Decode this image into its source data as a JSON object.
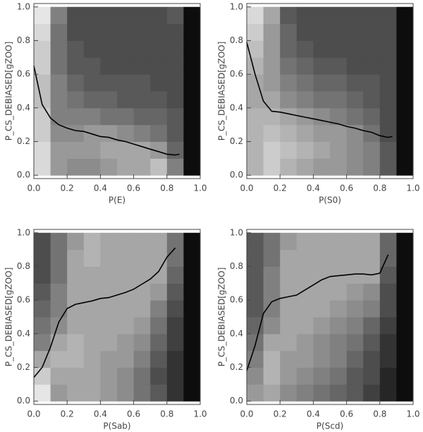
{
  "chart_data": [
    {
      "type": "line",
      "xlabel": "P(E)",
      "ylabel": "P_CS_DEBIASED[gZOO]",
      "color": "#000000",
      "colormap": "gray",
      "x": [
        0,
        0.05,
        0.1,
        0.15,
        0.2,
        0.25,
        0.3,
        0.35,
        0.4,
        0.45,
        0.5,
        0.55,
        0.6,
        0.65,
        0.7,
        0.75,
        0.8,
        0.85,
        0.875
      ],
      "values": [
        0.65,
        0.42,
        0.34,
        0.3,
        0.28,
        0.265,
        0.26,
        0.245,
        0.23,
        0.225,
        0.21,
        0.2,
        0.185,
        0.17,
        0.155,
        0.14,
        0.125,
        0.12,
        0.125
      ],
      "xlim": [
        0,
        1
      ],
      "ylim": [
        -0.02,
        1.02
      ],
      "xticks": [
        {
          "value": 0,
          "label": "0.0"
        },
        {
          "value": 0.2,
          "label": "0.2"
        },
        {
          "value": 0.4,
          "label": "0.4"
        },
        {
          "value": 0.6,
          "label": "0.6"
        },
        {
          "value": 0.8,
          "label": "0.8"
        },
        {
          "value": 1,
          "label": "1.0"
        }
      ],
      "yticks": [
        {
          "value": 0,
          "label": "0.0"
        },
        {
          "value": 0.2,
          "label": "0.2"
        },
        {
          "value": 0.4,
          "label": "0.4"
        },
        {
          "value": 0.6,
          "label": "0.6"
        },
        {
          "value": 0.8,
          "label": "0.8"
        },
        {
          "value": 1,
          "label": "1.0"
        }
      ],
      "heatmap": {
        "xbins": [
          0,
          0.1,
          0.2,
          0.3,
          0.4,
          0.5,
          0.6,
          0.7,
          0.8,
          0.9,
          1
        ],
        "ybins": [
          0,
          0.1,
          0.2,
          0.3,
          0.4,
          0.5,
          0.6,
          0.7,
          0.8,
          0.9,
          1
        ],
        "z": [
          [
            0.85,
            0.6,
            0.55,
            0.55,
            0.6,
            0.65,
            0.65,
            0.75,
            0.5,
            0.05
          ],
          [
            0.85,
            0.6,
            0.6,
            0.6,
            0.65,
            0.65,
            0.65,
            0.6,
            0.4,
            0.05
          ],
          [
            0.8,
            0.55,
            0.55,
            0.6,
            0.6,
            0.55,
            0.5,
            0.45,
            0.35,
            0.05
          ],
          [
            0.8,
            0.5,
            0.5,
            0.5,
            0.45,
            0.45,
            0.4,
            0.4,
            0.35,
            0.05
          ],
          [
            0.75,
            0.5,
            0.45,
            0.4,
            0.4,
            0.35,
            0.35,
            0.35,
            0.3,
            0.05
          ],
          [
            0.75,
            0.5,
            0.4,
            0.35,
            0.35,
            0.35,
            0.35,
            0.3,
            0.3,
            0.05
          ],
          [
            0.8,
            0.45,
            0.35,
            0.35,
            0.3,
            0.3,
            0.3,
            0.3,
            0.3,
            0.05
          ],
          [
            0.8,
            0.45,
            0.35,
            0.3,
            0.3,
            0.3,
            0.3,
            0.3,
            0.3,
            0.05
          ],
          [
            0.85,
            0.45,
            0.3,
            0.3,
            0.3,
            0.3,
            0.3,
            0.3,
            0.3,
            0.05
          ],
          [
            0.9,
            0.5,
            0.3,
            0.3,
            0.3,
            0.3,
            0.3,
            0.3,
            0.35,
            0.05
          ]
        ]
      }
    },
    {
      "type": "line",
      "xlabel": "P(S0)",
      "ylabel": "P_CS_DEBIASED[gZOO]",
      "color": "#000000",
      "colormap": "gray",
      "x": [
        0,
        0.05,
        0.1,
        0.15,
        0.2,
        0.25,
        0.3,
        0.35,
        0.4,
        0.45,
        0.5,
        0.55,
        0.6,
        0.65,
        0.7,
        0.75,
        0.8,
        0.85,
        0.875
      ],
      "values": [
        0.79,
        0.6,
        0.44,
        0.38,
        0.375,
        0.365,
        0.355,
        0.345,
        0.335,
        0.325,
        0.315,
        0.305,
        0.29,
        0.28,
        0.265,
        0.255,
        0.235,
        0.225,
        0.23
      ],
      "xlim": [
        0,
        1
      ],
      "ylim": [
        -0.02,
        1.02
      ],
      "xticks": [
        {
          "value": 0,
          "label": "0.0"
        },
        {
          "value": 0.2,
          "label": "0.2"
        },
        {
          "value": 0.4,
          "label": "0.4"
        },
        {
          "value": 0.6,
          "label": "0.6"
        },
        {
          "value": 0.8,
          "label": "0.8"
        },
        {
          "value": 1,
          "label": "1.0"
        }
      ],
      "yticks": [
        {
          "value": 0,
          "label": "0.0"
        },
        {
          "value": 0.2,
          "label": "0.2"
        },
        {
          "value": 0.4,
          "label": "0.4"
        },
        {
          "value": 0.6,
          "label": "0.6"
        },
        {
          "value": 0.8,
          "label": "0.8"
        },
        {
          "value": 1,
          "label": "1.0"
        }
      ],
      "heatmap": {
        "xbins": [
          0,
          0.1,
          0.2,
          0.3,
          0.4,
          0.5,
          0.6,
          0.7,
          0.8,
          0.9,
          1
        ],
        "ybins": [
          0,
          0.1,
          0.2,
          0.3,
          0.4,
          0.5,
          0.6,
          0.7,
          0.8,
          0.9,
          1
        ],
        "z": [
          [
            0.7,
            0.8,
            0.7,
            0.65,
            0.6,
            0.6,
            0.55,
            0.5,
            0.35,
            0.05
          ],
          [
            0.7,
            0.8,
            0.75,
            0.7,
            0.65,
            0.6,
            0.55,
            0.5,
            0.35,
            0.05
          ],
          [
            0.7,
            0.75,
            0.7,
            0.65,
            0.6,
            0.6,
            0.55,
            0.45,
            0.3,
            0.05
          ],
          [
            0.7,
            0.7,
            0.65,
            0.6,
            0.55,
            0.5,
            0.45,
            0.4,
            0.3,
            0.05
          ],
          [
            0.65,
            0.65,
            0.55,
            0.5,
            0.45,
            0.45,
            0.4,
            0.35,
            0.3,
            0.05
          ],
          [
            0.65,
            0.6,
            0.5,
            0.45,
            0.4,
            0.4,
            0.35,
            0.35,
            0.3,
            0.05
          ],
          [
            0.7,
            0.6,
            0.45,
            0.4,
            0.35,
            0.35,
            0.3,
            0.3,
            0.3,
            0.05
          ],
          [
            0.75,
            0.6,
            0.4,
            0.35,
            0.3,
            0.3,
            0.3,
            0.3,
            0.3,
            0.05
          ],
          [
            0.8,
            0.6,
            0.4,
            0.3,
            0.3,
            0.3,
            0.3,
            0.3,
            0.3,
            0.05
          ],
          [
            0.85,
            0.65,
            0.35,
            0.3,
            0.3,
            0.3,
            0.3,
            0.3,
            0.3,
            0.05
          ]
        ]
      }
    },
    {
      "type": "line",
      "xlabel": "P(Sab)",
      "ylabel": "P_CS_DEBIASED[gZOO]",
      "color": "#000000",
      "colormap": "gray",
      "x": [
        0,
        0.05,
        0.1,
        0.15,
        0.2,
        0.25,
        0.3,
        0.35,
        0.4,
        0.45,
        0.5,
        0.55,
        0.6,
        0.65,
        0.7,
        0.75,
        0.8,
        0.85
      ],
      "values": [
        0.14,
        0.2,
        0.32,
        0.47,
        0.55,
        0.575,
        0.585,
        0.595,
        0.61,
        0.615,
        0.63,
        0.645,
        0.665,
        0.695,
        0.725,
        0.77,
        0.855,
        0.91
      ],
      "xlim": [
        0,
        1
      ],
      "ylim": [
        -0.02,
        1.02
      ],
      "xticks": [
        {
          "value": 0,
          "label": "0.0"
        },
        {
          "value": 0.2,
          "label": "0.2"
        },
        {
          "value": 0.4,
          "label": "0.4"
        },
        {
          "value": 0.6,
          "label": "0.6"
        },
        {
          "value": 0.8,
          "label": "0.8"
        },
        {
          "value": 1,
          "label": "1.0"
        }
      ],
      "yticks": [
        {
          "value": 0,
          "label": "0.0"
        },
        {
          "value": 0.2,
          "label": "0.2"
        },
        {
          "value": 0.4,
          "label": "0.4"
        },
        {
          "value": 0.6,
          "label": "0.6"
        },
        {
          "value": 0.8,
          "label": "0.8"
        },
        {
          "value": 1,
          "label": "1.0"
        }
      ],
      "heatmap": {
        "xbins": [
          0,
          0.1,
          0.2,
          0.3,
          0.4,
          0.5,
          0.6,
          0.7,
          0.8,
          0.9,
          1
        ],
        "ybins": [
          0,
          0.1,
          0.2,
          0.3,
          0.4,
          0.5,
          0.6,
          0.7,
          0.8,
          0.9,
          1
        ],
        "z": [
          [
            0.9,
            0.6,
            0.65,
            0.65,
            0.6,
            0.55,
            0.45,
            0.35,
            0.2,
            0.05
          ],
          [
            0.8,
            0.65,
            0.65,
            0.65,
            0.6,
            0.55,
            0.45,
            0.3,
            0.2,
            0.05
          ],
          [
            0.65,
            0.7,
            0.7,
            0.65,
            0.6,
            0.6,
            0.5,
            0.35,
            0.2,
            0.05
          ],
          [
            0.5,
            0.65,
            0.7,
            0.65,
            0.65,
            0.6,
            0.55,
            0.4,
            0.25,
            0.05
          ],
          [
            0.45,
            0.55,
            0.65,
            0.65,
            0.65,
            0.65,
            0.6,
            0.45,
            0.25,
            0.05
          ],
          [
            0.4,
            0.5,
            0.65,
            0.65,
            0.65,
            0.65,
            0.65,
            0.5,
            0.3,
            0.05
          ],
          [
            0.35,
            0.5,
            0.65,
            0.65,
            0.65,
            0.65,
            0.65,
            0.6,
            0.35,
            0.05
          ],
          [
            0.3,
            0.45,
            0.65,
            0.65,
            0.65,
            0.65,
            0.65,
            0.65,
            0.4,
            0.05
          ],
          [
            0.3,
            0.45,
            0.65,
            0.7,
            0.65,
            0.65,
            0.65,
            0.65,
            0.45,
            0.05
          ],
          [
            0.3,
            0.45,
            0.6,
            0.7,
            0.65,
            0.65,
            0.65,
            0.65,
            0.45,
            0.05
          ]
        ]
      }
    },
    {
      "type": "line",
      "xlabel": "P(Scd)",
      "ylabel": "P_CS_DEBIASED[gZOO]",
      "color": "#000000",
      "colormap": "gray",
      "x": [
        0,
        0.05,
        0.1,
        0.15,
        0.2,
        0.25,
        0.3,
        0.35,
        0.4,
        0.45,
        0.5,
        0.55,
        0.6,
        0.65,
        0.7,
        0.75,
        0.8,
        0.85
      ],
      "values": [
        0.18,
        0.33,
        0.52,
        0.59,
        0.61,
        0.62,
        0.63,
        0.66,
        0.69,
        0.72,
        0.74,
        0.745,
        0.75,
        0.755,
        0.755,
        0.75,
        0.76,
        0.87
      ],
      "xlim": [
        0,
        1
      ],
      "ylim": [
        -0.02,
        1.02
      ],
      "xticks": [
        {
          "value": 0,
          "label": "0.0"
        },
        {
          "value": 0.2,
          "label": "0.2"
        },
        {
          "value": 0.4,
          "label": "0.4"
        },
        {
          "value": 0.6,
          "label": "0.6"
        },
        {
          "value": 0.8,
          "label": "0.8"
        },
        {
          "value": 1,
          "label": "1.0"
        }
      ],
      "yticks": [
        {
          "value": 0,
          "label": "0.0"
        },
        {
          "value": 0.2,
          "label": "0.2"
        },
        {
          "value": 0.4,
          "label": "0.4"
        },
        {
          "value": 0.6,
          "label": "0.6"
        },
        {
          "value": 0.8,
          "label": "0.8"
        },
        {
          "value": 1,
          "label": "1.0"
        }
      ],
      "heatmap": {
        "xbins": [
          0,
          0.1,
          0.2,
          0.3,
          0.4,
          0.5,
          0.6,
          0.7,
          0.8,
          0.9,
          1
        ],
        "ybins": [
          0,
          0.1,
          0.2,
          0.3,
          0.4,
          0.5,
          0.6,
          0.7,
          0.8,
          0.9,
          1
        ],
        "z": [
          [
            0.6,
            0.65,
            0.55,
            0.5,
            0.45,
            0.4,
            0.35,
            0.25,
            0.15,
            0.05
          ],
          [
            0.55,
            0.7,
            0.6,
            0.55,
            0.5,
            0.45,
            0.35,
            0.3,
            0.15,
            0.05
          ],
          [
            0.5,
            0.7,
            0.6,
            0.6,
            0.55,
            0.5,
            0.4,
            0.3,
            0.2,
            0.05
          ],
          [
            0.45,
            0.65,
            0.65,
            0.6,
            0.55,
            0.5,
            0.45,
            0.35,
            0.2,
            0.05
          ],
          [
            0.4,
            0.55,
            0.65,
            0.65,
            0.6,
            0.55,
            0.5,
            0.4,
            0.25,
            0.05
          ],
          [
            0.35,
            0.5,
            0.65,
            0.65,
            0.65,
            0.6,
            0.55,
            0.5,
            0.3,
            0.05
          ],
          [
            0.35,
            0.5,
            0.65,
            0.65,
            0.65,
            0.65,
            0.6,
            0.55,
            0.3,
            0.05
          ],
          [
            0.35,
            0.5,
            0.65,
            0.65,
            0.65,
            0.65,
            0.65,
            0.65,
            0.35,
            0.05
          ],
          [
            0.35,
            0.45,
            0.65,
            0.65,
            0.65,
            0.65,
            0.65,
            0.65,
            0.4,
            0.05
          ],
          [
            0.35,
            0.45,
            0.6,
            0.65,
            0.65,
            0.65,
            0.65,
            0.65,
            0.4,
            0.05
          ]
        ]
      }
    }
  ]
}
